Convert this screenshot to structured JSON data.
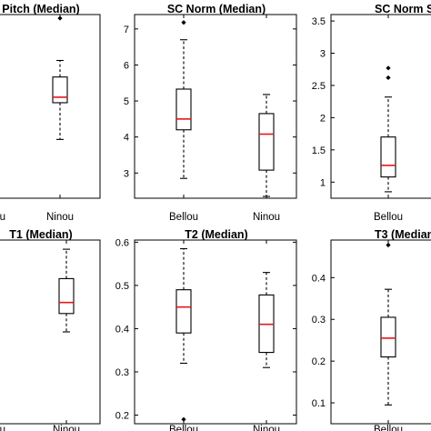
{
  "chart_data": [
    {
      "type": "boxplot",
      "title": "Pitch (Median)",
      "categories": [
        "Bellou",
        "Ninou"
      ],
      "yticks": [],
      "ylim": [
        0,
        1
      ],
      "boxes": [
        null,
        {
          "name": "Ninou",
          "min": 0.32,
          "q1": 0.52,
          "median": 0.55,
          "q3": 0.66,
          "max": 0.75,
          "outliers": [
            0.98
          ]
        }
      ]
    },
    {
      "type": "boxplot",
      "title": "SC Norm (Median)",
      "categories": [
        "Bellou",
        "Ninou"
      ],
      "yticks": [
        "3",
        "4",
        "5",
        "6",
        "7"
      ],
      "ytick_values": [
        3,
        4,
        5,
        6,
        7
      ],
      "ylim": [
        2.3,
        7.4
      ],
      "boxes": [
        {
          "name": "Bellou",
          "min": 2.85,
          "q1": 4.2,
          "median": 4.5,
          "q3": 5.33,
          "max": 6.7,
          "outliers": [
            7.18
          ]
        },
        {
          "name": "Ninou",
          "min": 2.35,
          "q1": 3.08,
          "median": 4.08,
          "q3": 4.65,
          "max": 5.18,
          "outliers": []
        }
      ]
    },
    {
      "type": "boxplot",
      "title": "SC Norm S",
      "categories": [
        "Bellou"
      ],
      "yticks": [
        "1",
        "1.5",
        "2",
        "2.5",
        "3",
        "3.5"
      ],
      "ytick_values": [
        1,
        1.5,
        2,
        2.5,
        3,
        3.5
      ],
      "ylim": [
        0.75,
        3.6
      ],
      "boxes": [
        {
          "name": "Bellou",
          "min": 0.85,
          "q1": 1.08,
          "median": 1.26,
          "q3": 1.7,
          "max": 2.32,
          "outliers": [
            2.62,
            2.77
          ]
        }
      ]
    },
    {
      "type": "boxplot",
      "title": "T1 (Median)",
      "categories": [
        "Bellou",
        "Ninou"
      ],
      "yticks": [],
      "ylim": [
        0,
        1
      ],
      "boxes": [
        null,
        {
          "name": "Ninou",
          "min": 0.5,
          "q1": 0.6,
          "median": 0.66,
          "q3": 0.79,
          "max": 0.95,
          "outliers": []
        }
      ]
    },
    {
      "type": "boxplot",
      "title": "T2 (Median)",
      "categories": [
        "Bellou",
        "Ninou"
      ],
      "yticks": [
        "0.2",
        "0.3",
        "0.4",
        "0.5",
        "0.6"
      ],
      "ytick_values": [
        0.2,
        0.3,
        0.4,
        0.5,
        0.6
      ],
      "ylim": [
        0.18,
        0.605
      ],
      "boxes": [
        {
          "name": "Bellou",
          "min": 0.32,
          "q1": 0.39,
          "median": 0.45,
          "q3": 0.49,
          "max": 0.585,
          "outliers": [
            0.19
          ]
        },
        {
          "name": "Ninou",
          "min": 0.31,
          "q1": 0.345,
          "median": 0.41,
          "q3": 0.478,
          "max": 0.53,
          "outliers": []
        }
      ]
    },
    {
      "type": "boxplot",
      "title": "T3 (Median",
      "categories": [
        "Bellou"
      ],
      "yticks": [
        "0.1",
        "0.2",
        "0.3",
        "0.4"
      ],
      "ytick_values": [
        0.1,
        0.2,
        0.3,
        0.4
      ],
      "ylim": [
        0.05,
        0.49
      ],
      "boxes": [
        {
          "name": "Bellou",
          "min": 0.095,
          "q1": 0.21,
          "median": 0.255,
          "q3": 0.305,
          "max": 0.372,
          "outliers": [
            0.478
          ]
        }
      ]
    }
  ]
}
